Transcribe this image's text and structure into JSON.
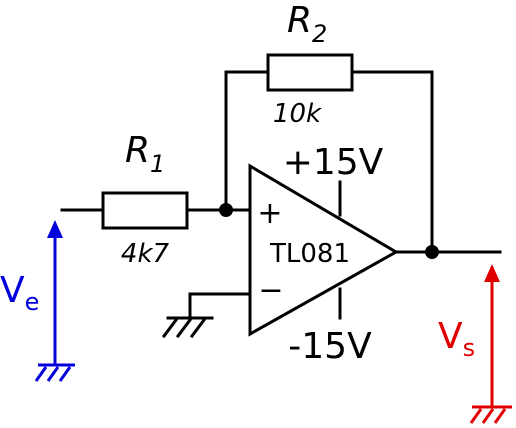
{
  "resistors": [
    {
      "label": "R",
      "subscript": "1",
      "value": "4k7"
    },
    {
      "label": "R",
      "subscript": "2",
      "value": "10k"
    }
  ],
  "opamp": {
    "name": "TL081",
    "plus": "+",
    "minus": "−",
    "supply_pos": "+15V",
    "supply_neg": "-15V"
  },
  "input": {
    "label": "V",
    "subscript": "e"
  },
  "output": {
    "label": "V",
    "subscript": "s"
  }
}
